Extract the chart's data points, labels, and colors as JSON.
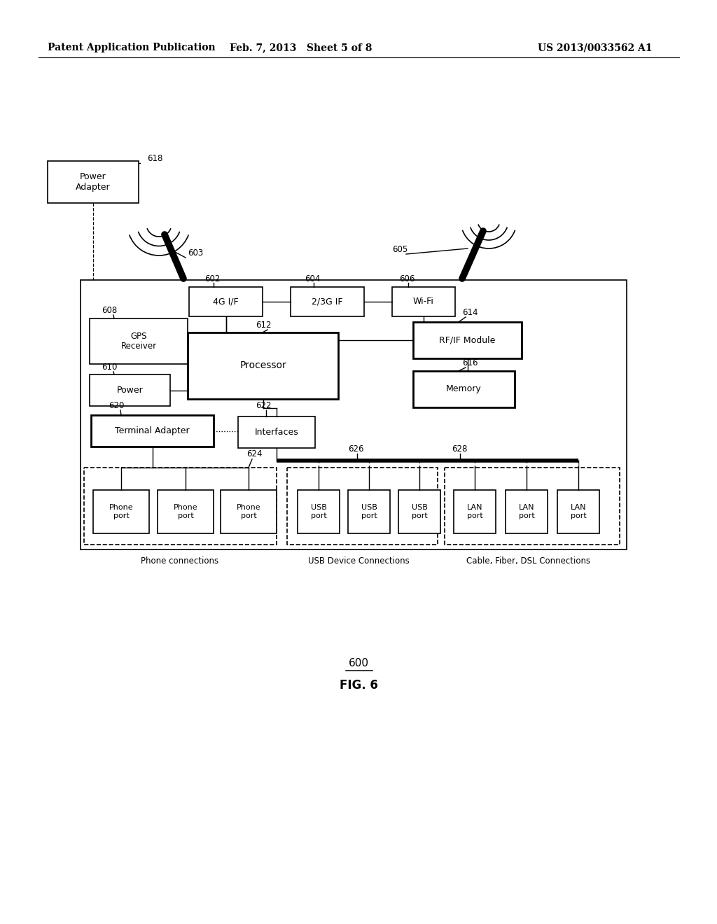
{
  "header_left": "Patent Application Publication",
  "header_mid": "Feb. 7, 2013   Sheet 5 of 8",
  "header_right": "US 2013/0033562 A1",
  "fig_label": "600",
  "fig_name": "FIG. 6",
  "bg_color": "#ffffff",
  "line_color": "#000000"
}
